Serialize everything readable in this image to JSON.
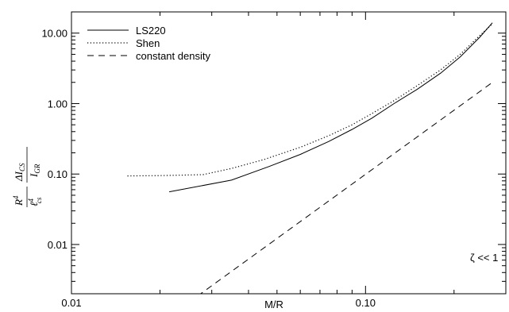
{
  "chart_data": {
    "type": "line",
    "xscale": "log",
    "yscale": "log",
    "xlim": [
      0.01,
      0.3
    ],
    "ylim": [
      0.002,
      20
    ],
    "xlabel": "M/R",
    "ylabel": {
      "lead": "R",
      "lead_sup": "4",
      "lead_denom": "ℓ",
      "lead_denom_sup": "4",
      "lead_denom_sub": "cs",
      "num": "ΔI",
      "num_sub": "CS",
      "den": "I",
      "den_sub": "GR"
    },
    "xticks": [
      {
        "value": 0.01,
        "label": "0.01"
      },
      {
        "value": 0.1,
        "label": "0.10"
      }
    ],
    "yticks": [
      {
        "value": 0.01,
        "label": "0.01"
      },
      {
        "value": 0.1,
        "label": "0.10"
      },
      {
        "value": 1,
        "label": "1.00"
      },
      {
        "value": 10,
        "label": "10.00"
      }
    ],
    "annotation": "ζ << 1",
    "legend_position": "top-left",
    "series": [
      {
        "name": "LS220",
        "dash": "solid",
        "x": [
          0.0215,
          0.035,
          0.047,
          0.06,
          0.075,
          0.09,
          0.105,
          0.125,
          0.15,
          0.18,
          0.21,
          0.245,
          0.27
        ],
        "y": [
          0.056,
          0.082,
          0.128,
          0.19,
          0.29,
          0.43,
          0.62,
          1.0,
          1.6,
          2.7,
          4.6,
          8.8,
          14.0
        ]
      },
      {
        "name": "Shen",
        "dash": "dotted",
        "x": [
          0.0155,
          0.02,
          0.028,
          0.035,
          0.045,
          0.06,
          0.075,
          0.09,
          0.105,
          0.125,
          0.15,
          0.18,
          0.21,
          0.245,
          0.27
        ],
        "y": [
          0.094,
          0.095,
          0.098,
          0.12,
          0.16,
          0.24,
          0.35,
          0.5,
          0.72,
          1.1,
          1.8,
          3.0,
          5.0,
          9.3,
          13.5
        ]
      },
      {
        "name": "constant density",
        "dash": "dashed",
        "x": [
          0.025,
          0.27
        ],
        "y": [
          0.0015,
          2.0
        ]
      }
    ]
  }
}
